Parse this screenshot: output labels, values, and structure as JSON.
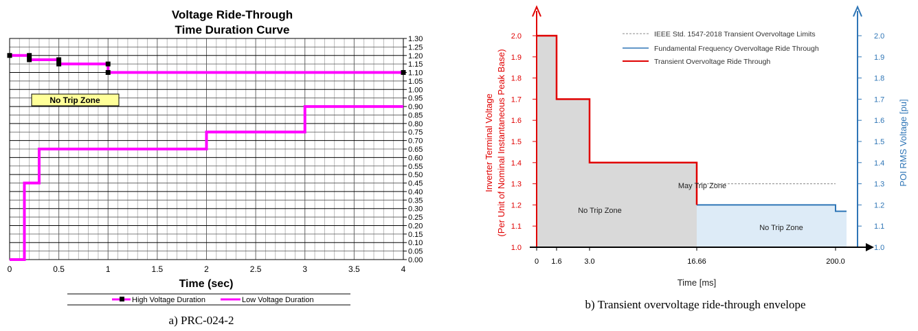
{
  "chart_data": [
    {
      "type": "line",
      "title": "Voltage Ride-Through",
      "subtitle": "Time Duration Curve",
      "xlabel": "Time (sec)",
      "ylabel": "",
      "xlim": [
        0,
        4
      ],
      "ylim": [
        0,
        1.3
      ],
      "x_ticks": [
        "0",
        "0.5",
        "1",
        "1.5",
        "2",
        "2.5",
        "3",
        "3.5",
        "4"
      ],
      "y_ticks": [
        "0.00",
        "0.05",
        "0.10",
        "0.15",
        "0.20",
        "0.25",
        "0.30",
        "0.35",
        "0.40",
        "0.45",
        "0.50",
        "0.55",
        "0.60",
        "0.65",
        "0.70",
        "0.75",
        "0.80",
        "0.85",
        "0.90",
        "0.95",
        "1.00",
        "1.05",
        "1.10",
        "1.15",
        "1.20",
        "1.25",
        "1.30"
      ],
      "grid": true,
      "legend_position": "bottom",
      "zone_label": "No Trip Zone",
      "series": [
        {
          "name": "High Voltage Duration",
          "color": "#ff00ff",
          "marker": "square",
          "points": [
            [
              0,
              1.2
            ],
            [
              0.2,
              1.2
            ],
            [
              0.2,
              1.175
            ],
            [
              0.5,
              1.175
            ],
            [
              0.5,
              1.15
            ],
            [
              1.0,
              1.15
            ],
            [
              1.0,
              1.1
            ],
            [
              4.0,
              1.1
            ]
          ]
        },
        {
          "name": "Low Voltage Duration",
          "color": "#ff00ff",
          "marker": "none",
          "points": [
            [
              0,
              0
            ],
            [
              0.15,
              0
            ],
            [
              0.15,
              0.45
            ],
            [
              0.3,
              0.45
            ],
            [
              0.3,
              0.65
            ],
            [
              2.0,
              0.65
            ],
            [
              2.0,
              0.75
            ],
            [
              3.0,
              0.75
            ],
            [
              3.0,
              0.9
            ],
            [
              4.0,
              0.9
            ]
          ]
        }
      ],
      "caption": "a) PRC-024-2"
    },
    {
      "type": "line",
      "title": "",
      "xlabel": "Time [ms]",
      "ylabel_left": "Inverter Terminal Voltage",
      "ylabel_left_2": "(Per Unit of Nominal Instantaneous Peak Base)",
      "ylabel_right": "POI RMS Voltage [pu]",
      "x_ticks": [
        "0",
        "1.6",
        "3.0",
        "16.66",
        "200.0"
      ],
      "y_ticks_left": [
        "1.0",
        "1.1",
        "1.2",
        "1.3",
        "1.4",
        "1.5",
        "1.6",
        "1.7",
        "1.8",
        "1.9",
        "2.0"
      ],
      "y_ticks_right": [
        "1.0",
        "1.1",
        "1.2",
        "1.3",
        "1.4",
        "1.5",
        "1.6",
        "1.7",
        "1.8",
        "1.9",
        "2.0"
      ],
      "ylim": [
        1.0,
        2.0
      ],
      "x_scale": "piecewise (not to scale)",
      "legend_position": "top-right",
      "zone_labels": [
        "May Trip Zone",
        "No Trip Zone",
        "No Trip Zone"
      ],
      "series": [
        {
          "name": "IEEE Std. 1547-2018 Transient Overvoltage Limits",
          "color": "#888888",
          "style": "dashed",
          "points": [
            [
              "16.66",
              1.3
            ],
            [
              "200.0",
              1.3
            ]
          ]
        },
        {
          "name": "Fundamental Frequency Overvoltage Ride Through",
          "color": "#2e75b6",
          "style": "solid",
          "points": [
            [
              "16.66",
              1.2
            ],
            [
              "200.0",
              1.2
            ],
            [
              "200.0",
              1.17
            ],
            [
              "end",
              1.17
            ]
          ]
        },
        {
          "name": "Transient Overvoltage Ride Through",
          "color": "#e00000",
          "style": "solid",
          "points": [
            [
              "0",
              2.0
            ],
            [
              "1.6",
              2.0
            ],
            [
              "1.6",
              1.7
            ],
            [
              "3.0",
              1.7
            ],
            [
              "3.0",
              1.4
            ],
            [
              "16.66",
              1.4
            ],
            [
              "16.66",
              1.2
            ]
          ]
        }
      ],
      "caption": "b) Transient overvoltage ride-through envelope"
    }
  ]
}
